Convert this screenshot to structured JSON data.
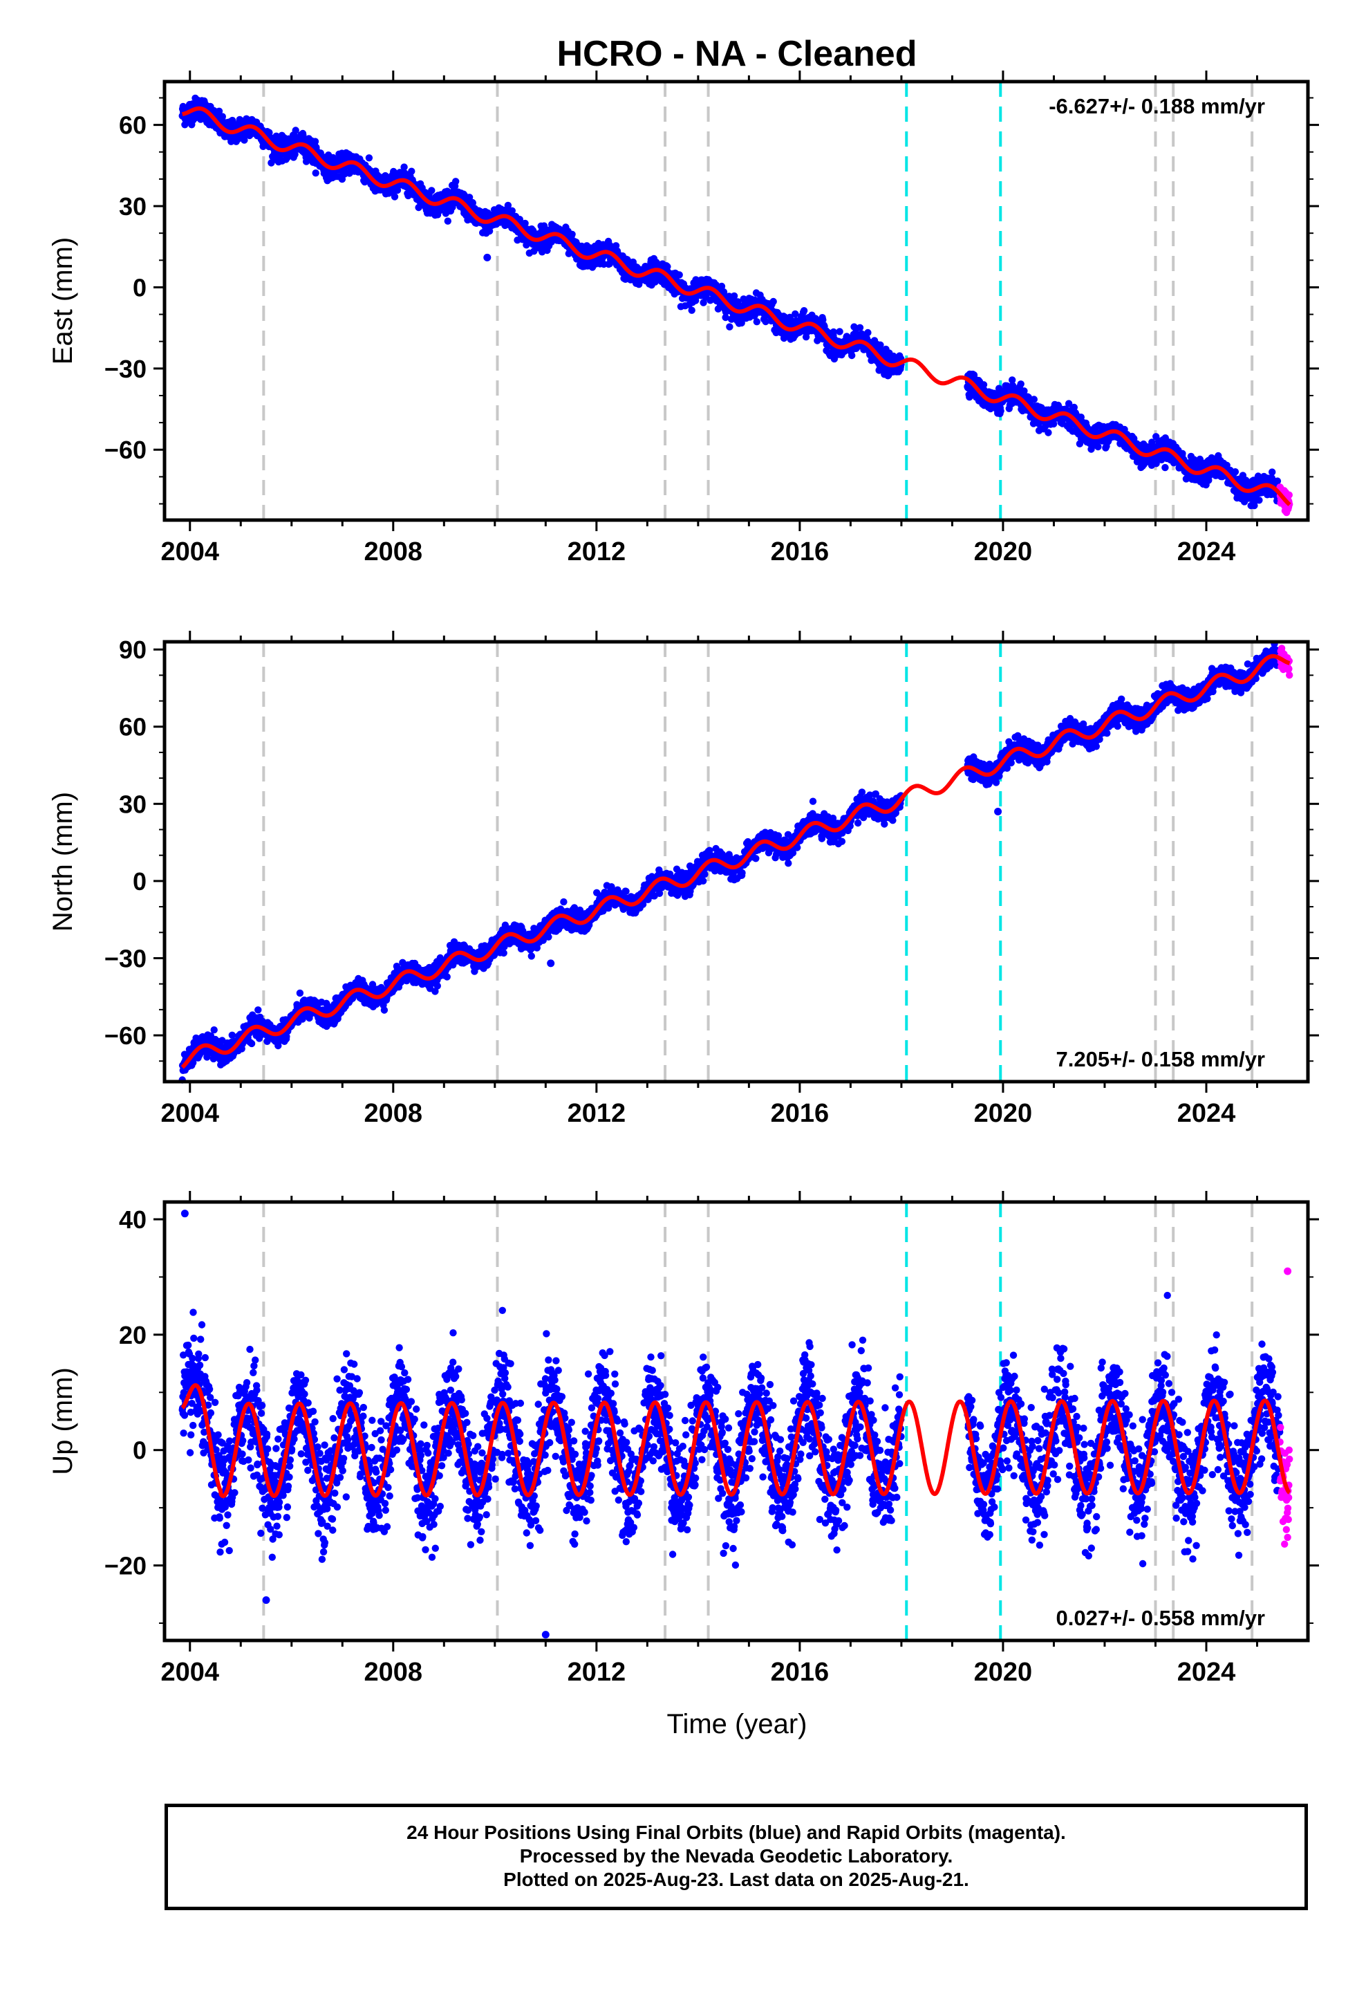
{
  "title": "HCRO  - NA - Cleaned",
  "xlabel": "Time (year)",
  "footer": {
    "line1": "24 Hour Positions Using Final Orbits (blue) and Rapid Orbits (magenta).",
    "line2": "Processed by the Nevada Geodetic Laboratory.",
    "line3": "Plotted on 2025-Aug-23. Last data on 2025-Aug-21."
  },
  "colors": {
    "final_orbits": "#0000ff",
    "rapid_orbits": "#ff00ff",
    "model": "#ff0000",
    "equipment_change": "#c8c8c8",
    "earthquake": "#00e5e5"
  },
  "chart_data": [
    {
      "type": "scatter",
      "name": "east",
      "ylabel": "East (mm)",
      "xlim": [
        2003.5,
        2026.0
      ],
      "ylim": [
        -86,
        76
      ],
      "xticks": [
        2004,
        2008,
        2012,
        2016,
        2020,
        2024
      ],
      "yticks": [
        60,
        30,
        0,
        -30,
        -60
      ],
      "annotation": "-6.627+/- 0.188 mm/yr",
      "annotation_position": "top-right",
      "rate": -6.627,
      "start_value": 66,
      "seasonal_amplitude": 2.5,
      "scatter_noise": 2.0,
      "gray_lines": [
        2005.45,
        2010.05,
        2013.35,
        2014.2,
        2023.0,
        2023.35,
        2024.9
      ],
      "cyan_lines": [
        2018.1,
        2019.95
      ],
      "data_gap": [
        2018.0,
        2019.3
      ],
      "data_start": 2003.85,
      "final_end": 2025.45,
      "rapid_end": 2025.64,
      "outliers": [
        [
          2009.85,
          11
        ],
        [
          2022.9,
          -64
        ]
      ]
    },
    {
      "type": "scatter",
      "name": "north",
      "ylabel": "North (mm)",
      "xlim": [
        2003.5,
        2026.0
      ],
      "ylim": [
        -78,
        93
      ],
      "xticks": [
        2004,
        2008,
        2012,
        2016,
        2020,
        2024
      ],
      "yticks": [
        90,
        60,
        30,
        0,
        -30,
        -60
      ],
      "annotation": "7.205+/- 0.158 mm/yr",
      "annotation_position": "bottom-right",
      "rate": 7.205,
      "start_value": -70,
      "seasonal_amplitude": 3.0,
      "scatter_noise": 2.0,
      "gray_lines": [
        2005.45,
        2010.05,
        2013.35,
        2014.2,
        2023.0,
        2023.35,
        2024.9
      ],
      "cyan_lines": [
        2018.1,
        2019.95
      ],
      "data_gap": [
        2018.0,
        2019.3
      ],
      "data_start": 2003.85,
      "final_end": 2025.45,
      "rapid_end": 2025.64,
      "outliers": [
        [
          2019.9,
          27
        ],
        [
          2011.1,
          -32
        ]
      ]
    },
    {
      "type": "scatter",
      "name": "up",
      "ylabel": "Up (mm)",
      "xlim": [
        2003.5,
        2026.0
      ],
      "ylim": [
        -33,
        43
      ],
      "xticks": [
        2004,
        2008,
        2012,
        2016,
        2020,
        2024
      ],
      "yticks": [
        40,
        20,
        0,
        -20
      ],
      "annotation": "0.027+/- 0.558 mm/yr",
      "annotation_position": "bottom-right",
      "rate": 0.027,
      "start_value": 0,
      "seasonal_amplitude": 8.0,
      "scatter_noise": 4.5,
      "gray_lines": [
        2005.45,
        2010.05,
        2013.35,
        2014.2,
        2023.0,
        2023.35,
        2024.9
      ],
      "cyan_lines": [
        2018.1,
        2019.95
      ],
      "data_gap": [
        2018.0,
        2019.3
      ],
      "data_start": 2003.85,
      "final_end": 2025.45,
      "rapid_end": 2025.64,
      "outliers": [
        [
          2003.9,
          41
        ],
        [
          2011.0,
          -32
        ],
        [
          2005.5,
          -26
        ],
        [
          2025.6,
          31
        ]
      ]
    }
  ]
}
